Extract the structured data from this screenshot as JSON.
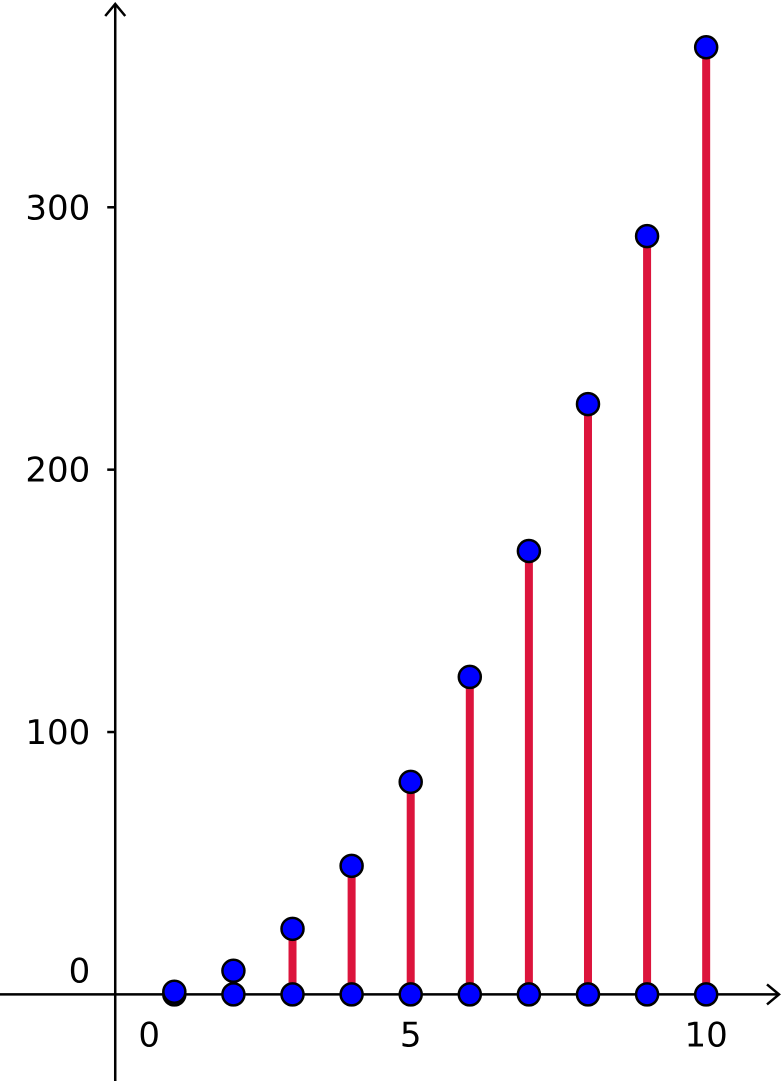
{
  "chart_data": {
    "type": "stem",
    "x": [
      1,
      2,
      3,
      4,
      5,
      6,
      7,
      8,
      9,
      10
    ],
    "values": [
      1,
      9,
      25,
      49,
      81,
      121,
      169,
      225,
      289,
      361
    ],
    "stem_color": "#dc143c",
    "point_color": "#0000ff",
    "xlim": [
      -1.95,
      11.3
    ],
    "ylim": [
      -33,
      379
    ],
    "xticks": [
      0,
      5,
      10
    ],
    "yticks": [
      0,
      100,
      200,
      300
    ]
  }
}
